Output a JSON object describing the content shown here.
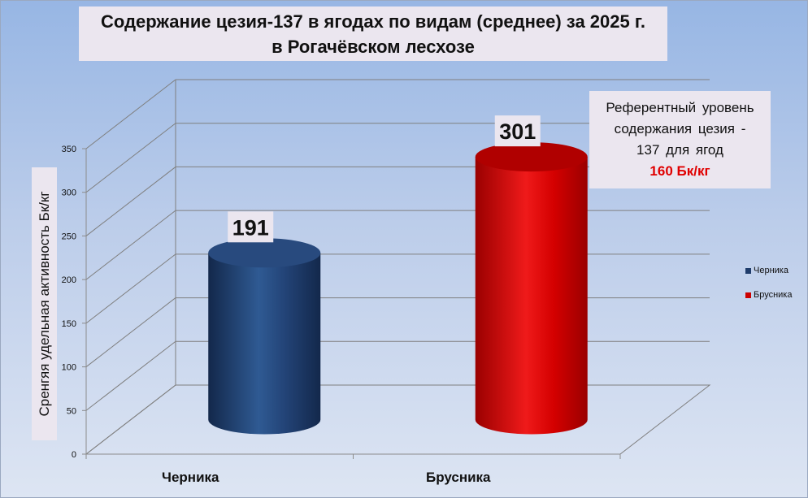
{
  "chart_data": {
    "type": "bar",
    "title_lines": [
      "Содержание цезия-137 в ягодах по видам (среднее) за 2025 г.",
      "в Рогачёвском лесхозе"
    ],
    "ylabel": "Сренгяя удельная  активность  Бк/кг",
    "categories": [
      "Черника",
      "Брусника"
    ],
    "values": [
      191,
      301
    ],
    "ylim": [
      0,
      350
    ],
    "yticks": [
      "0",
      "50",
      "100",
      "150",
      "200",
      "250",
      "300",
      "350"
    ],
    "colors": [
      "#1f3c6b",
      "#cc0000"
    ],
    "grid": true,
    "legend_position": "right",
    "legend": [
      "Черника",
      "Брусника"
    ]
  },
  "annotation": {
    "lines": [
      "Референтный  уровень",
      "содержания  цезия -",
      "137  для ягод"
    ],
    "value": "160 Бк/кг",
    "value_color": "#e00000"
  }
}
